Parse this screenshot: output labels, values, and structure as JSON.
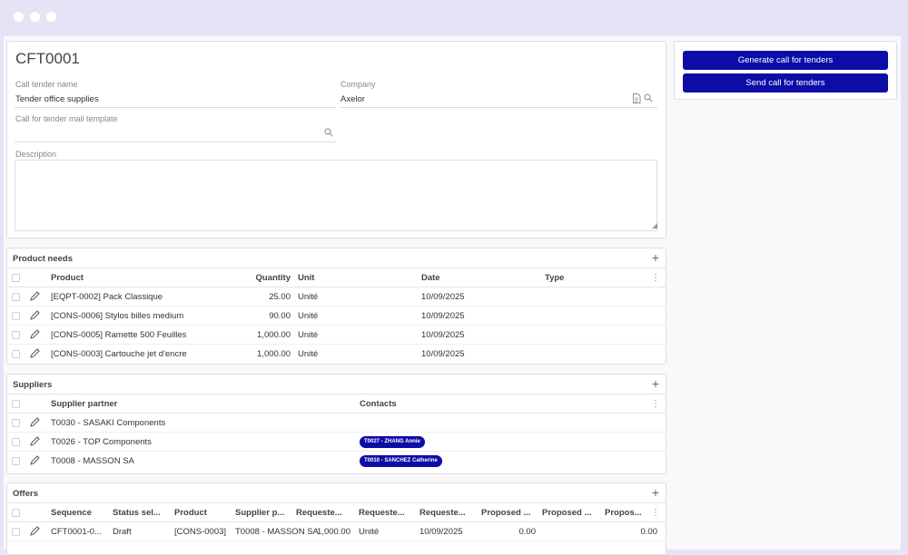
{
  "record": {
    "title": "CFT0001",
    "call_tender_name_label": "Call tender name",
    "call_tender_name_value": "Tender office supplies",
    "company_label": "Company",
    "company_value": "Axelor",
    "mail_template_label": "Call for tender mail template",
    "mail_template_value": "",
    "description_label": "Description",
    "description_value": ""
  },
  "actions": {
    "generate_label": "Generate call for tenders",
    "send_label": "Send call for tenders"
  },
  "product_needs": {
    "title": "Product needs",
    "headers": {
      "product": "Product",
      "quantity": "Quantity",
      "unit": "Unit",
      "date": "Date",
      "type": "Type"
    },
    "rows": [
      {
        "product": "[EQPT-0002] Pack Classique",
        "quantity": "25.00",
        "unit": "Unité",
        "date": "10/09/2025",
        "type": ""
      },
      {
        "product": "[CONS-0006] Stylos billes medium",
        "quantity": "90.00",
        "unit": "Unité",
        "date": "10/09/2025",
        "type": ""
      },
      {
        "product": "[CONS-0005] Ramette 500 Feuilles",
        "quantity": "1,000.00",
        "unit": "Unité",
        "date": "10/09/2025",
        "type": ""
      },
      {
        "product": "[CONS-0003] Cartouche jet d'encre",
        "quantity": "1,000.00",
        "unit": "Unité",
        "date": "10/09/2025",
        "type": ""
      }
    ]
  },
  "suppliers": {
    "title": "Suppliers",
    "headers": {
      "partner": "Supplier partner",
      "contacts": "Contacts"
    },
    "rows": [
      {
        "partner": "T0030 - SASAKI Components",
        "contact": ""
      },
      {
        "partner": "T0026 - TOP Components",
        "contact": "T0027 - ZHANG Annie"
      },
      {
        "partner": "T0008 - MASSON SA",
        "contact": "T0010 - SANCHEZ Catherine"
      }
    ]
  },
  "offers": {
    "title": "Offers",
    "headers": {
      "sequence": "Sequence",
      "status": "Status sel...",
      "product": "Product",
      "supplier": "Supplier p...",
      "req1": "Requeste...",
      "req2": "Requeste...",
      "req3": "Requeste...",
      "prop1": "Proposed ...",
      "prop2": "Proposed ...",
      "prop3": "Propos..."
    },
    "rows": [
      {
        "sequence": "CFT0001-0...",
        "status": "Draft",
        "product": "[CONS-0003]",
        "supplier": "T0008 - MASSON SA",
        "req_qty": "1,000.00",
        "req_unit": "Unité",
        "req_date": "10/09/2025",
        "prop_qty": "0.00",
        "prop_unit": "",
        "prop_price": "0.00"
      }
    ]
  },
  "icons": {
    "search": "search-icon",
    "document": "document-icon",
    "edit": "pencil-icon",
    "add": "plus-icon",
    "menu": "kebab-icon"
  },
  "colors": {
    "primary": "#0c0ca8",
    "background": "#e4e4f6",
    "border": "#dcdce4"
  }
}
